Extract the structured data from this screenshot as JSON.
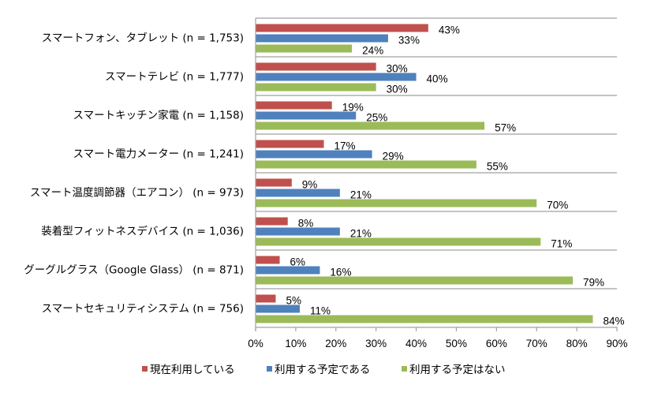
{
  "chart_data": {
    "type": "bar",
    "orientation": "horizontal",
    "title": "",
    "xlabel": "",
    "ylabel": "",
    "xlim": [
      0,
      90
    ],
    "x_ticks": [
      "0%",
      "10%",
      "20%",
      "30%",
      "40%",
      "50%",
      "60%",
      "70%",
      "80%",
      "90%"
    ],
    "grid": "horizontal category separators",
    "legend_position": "bottom",
    "categories": [
      "スマートフォン、タブレット (n = 1,753)",
      "スマートテレビ (n = 1,777)",
      "スマートキッチン家電 (n = 1,158)",
      "スマート電力メーター (n = 1,241)",
      "スマート温度調節器（エアコン） (n = 973)",
      "装着型フィットネスデバイス (n = 1,036)",
      "グーグルグラス（Google Glass） (n = 871)",
      "スマートセキュリティシステム (n = 756)"
    ],
    "series": [
      {
        "name": "現在利用している",
        "color": "#c0504d",
        "values": [
          43,
          30,
          19,
          17,
          9,
          8,
          6,
          5
        ],
        "labels": [
          "43%",
          "30%",
          "19%",
          "17%",
          "9%",
          "8%",
          "6%",
          "5%"
        ]
      },
      {
        "name": "利用する予定である",
        "color": "#4f81bd",
        "values": [
          33,
          40,
          25,
          29,
          21,
          21,
          16,
          11
        ],
        "labels": [
          "33%",
          "40%",
          "25%",
          "29%",
          "21%",
          "21%",
          "16%",
          "11%"
        ]
      },
      {
        "name": "利用する予定はない",
        "color": "#9bbb59",
        "values": [
          24,
          30,
          57,
          55,
          70,
          71,
          79,
          84
        ],
        "labels": [
          "24%",
          "30%",
          "57%",
          "55%",
          "70%",
          "71%",
          "79%",
          "84%"
        ]
      }
    ]
  }
}
